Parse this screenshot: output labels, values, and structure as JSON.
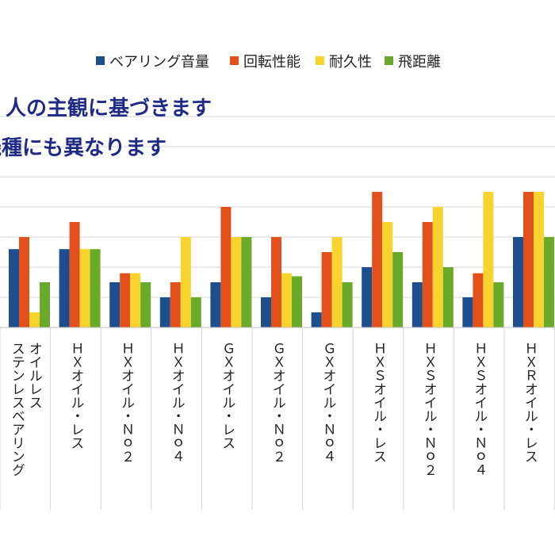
{
  "chart_data": {
    "type": "bar",
    "title": "",
    "notes": [
      "人の主観に基づきます",
      "機種にも異なります"
    ],
    "categories": [
      "オイルレス ステンレスベアリング",
      "ＨＸオイル・レス",
      "ＨＸオイル・Ｎｏ２",
      "ＨＸオイル・Ｎｏ４",
      "ＧＸオイル・レス",
      "ＧＸオイル・Ｎｏ２",
      "ＧＸオイル・Ｎｏ４",
      "ＨＸＳオイル・レス",
      "ＨＸＳオイル・Ｎｏ２",
      "ＨＸＳオイル・Ｎｏ４",
      "ＨＸＲオイル・レス"
    ],
    "category_columns": [
      [
        "オイルレス",
        "ステンレスベアリング"
      ],
      [
        "ＨＸオイル・レス"
      ],
      [
        "ＨＸオイル・Ｎｏ２"
      ],
      [
        "ＨＸオイル・Ｎｏ４"
      ],
      [
        "ＧＸオイル・レス"
      ],
      [
        "ＧＸオイル・Ｎｏ２"
      ],
      [
        "ＧＸオイル・Ｎｏ４"
      ],
      [
        "ＨＸＳオイル・レス"
      ],
      [
        "ＨＸＳオイル・Ｎｏ２"
      ],
      [
        "ＨＸＳオイル・Ｎｏ４"
      ],
      [
        "ＨＸＲオイル・レス"
      ]
    ],
    "series": [
      {
        "name": "ベアリング音量",
        "color": "#1f4e8c",
        "values": [
          2.6,
          2.6,
          1.5,
          1.0,
          1.5,
          1.0,
          0.5,
          2.0,
          1.5,
          1.0,
          3.0
        ]
      },
      {
        "name": "回転性能",
        "color": "#e2511b",
        "values": [
          3.0,
          3.5,
          1.8,
          1.5,
          4.0,
          3.0,
          2.5,
          4.5,
          3.5,
          1.8,
          4.5
        ]
      },
      {
        "name": "耐久性",
        "color": "#f7d32e",
        "values": [
          0.5,
          2.6,
          1.8,
          3.0,
          3.0,
          1.8,
          3.0,
          3.5,
          4.0,
          4.5,
          4.5
        ]
      },
      {
        "name": "飛距離",
        "color": "#6aaa2a",
        "values": [
          1.5,
          2.6,
          1.5,
          1.0,
          3.0,
          1.7,
          1.5,
          2.5,
          2.0,
          1.5,
          3.0
        ]
      }
    ],
    "ylim": [
      0,
      7
    ],
    "grid": true,
    "legend_position": "top"
  }
}
